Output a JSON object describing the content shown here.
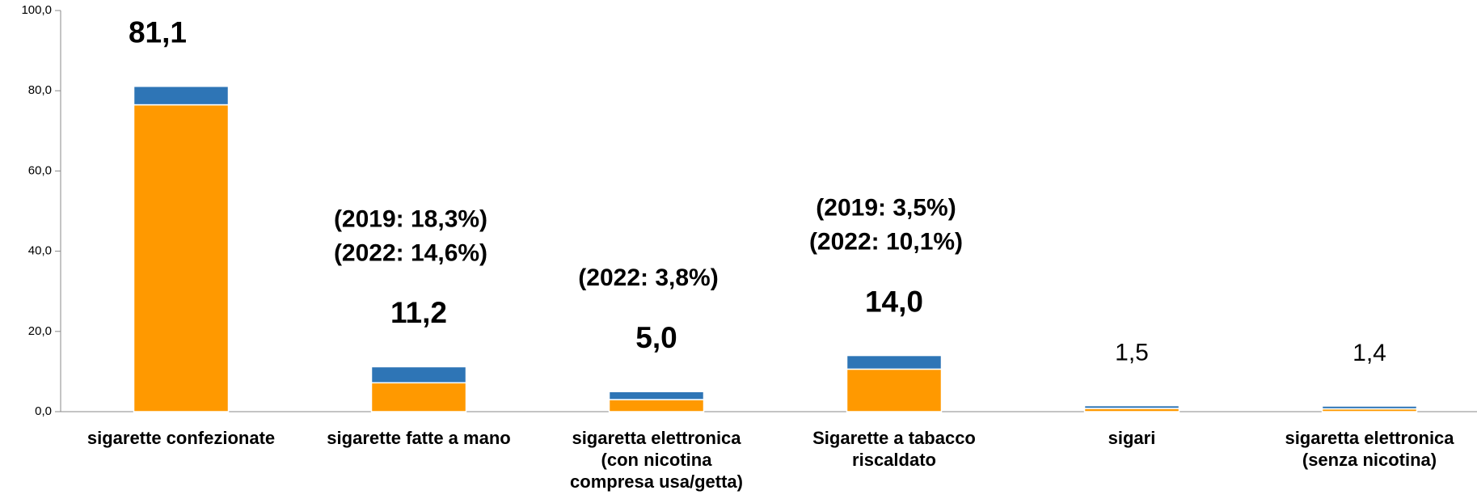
{
  "chart_data": {
    "type": "stacked_bar",
    "categories": [
      [
        "sigarette confezionate"
      ],
      [
        "sigarette fatte a mano"
      ],
      [
        "sigaretta elettronica",
        "(con nicotina",
        "compresa usa/getta)"
      ],
      [
        "Sigarette a tabacco",
        "riscaldato"
      ],
      [
        "sigari"
      ],
      [
        "sigaretta elettronica",
        "(senza nicotina)"
      ]
    ],
    "series": [
      {
        "color": "#ff9900",
        "values": [
          76.5,
          7.2,
          3.0,
          10.6,
          0.8,
          0.7
        ]
      },
      {
        "color": "#2e75b6",
        "values": [
          4.6,
          4.0,
          2.0,
          3.4,
          0.7,
          0.7
        ]
      }
    ],
    "totals": [
      81.1,
      11.2,
      5.0,
      14.0,
      1.5,
      1.4
    ],
    "total_labels": [
      "81,1",
      "11,2",
      "5,0",
      "14,0",
      "1,5",
      "1,4"
    ],
    "total_label_bold": [
      true,
      true,
      true,
      true,
      false,
      false
    ],
    "annotations": [
      null,
      [
        "(2019: 18,3%)",
        "(2022: 14,6%)"
      ],
      [
        "(2022: 3,8%)"
      ],
      [
        "(2019: 3,5%)",
        "(2022: 10,1%)"
      ],
      null,
      null
    ],
    "ylim": [
      0,
      100
    ],
    "yticks": [
      {
        "value": 0,
        "label": "0,0"
      },
      {
        "value": 20,
        "label": "20,0"
      },
      {
        "value": 40,
        "label": "40,0"
      },
      {
        "value": 60,
        "label": "60,0"
      },
      {
        "value": 80,
        "label": "80,0"
      },
      {
        "value": 100,
        "label": "100,0"
      }
    ]
  }
}
